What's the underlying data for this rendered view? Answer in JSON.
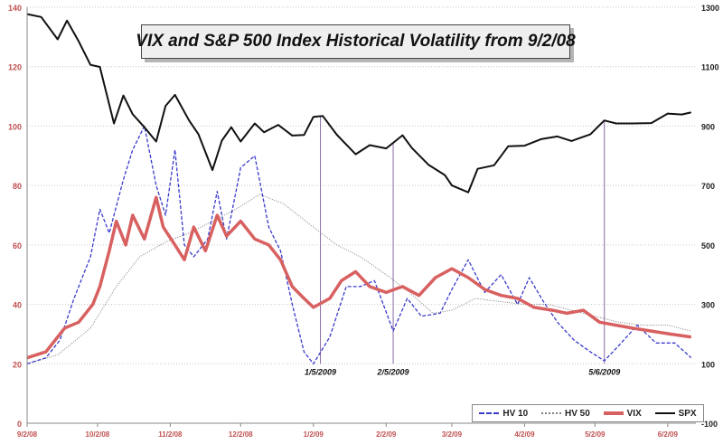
{
  "chart_data": {
    "type": "line",
    "title": "VIX and S&P 500 Index Historical Volatility from 9/2/08",
    "x_dates": [
      "9/2/08",
      "10/2/08",
      "11/2/08",
      "12/2/08",
      "1/2/09",
      "2/2/09",
      "3/2/09",
      "4/2/09",
      "5/2/09",
      "6/2/09"
    ],
    "left_axis": {
      "ylim": [
        0,
        140
      ],
      "ticks": [
        0,
        20,
        40,
        60,
        80,
        100,
        120,
        140
      ]
    },
    "right_axis": {
      "ylim": [
        -100,
        1300
      ],
      "ticks": [
        -100,
        100,
        300,
        500,
        700,
        900,
        1100,
        1300
      ]
    },
    "grid": true,
    "legend_position": "bottom-right",
    "series": [
      {
        "name": "HV 10",
        "axis": "left",
        "color": "#3a3acc",
        "style": "dashed",
        "points": [
          [
            "9/2/08",
            20
          ],
          [
            "9/10/08",
            22
          ],
          [
            "9/16/08",
            28
          ],
          [
            "9/22/08",
            42
          ],
          [
            "9/29/08",
            56
          ],
          [
            "10/3/08",
            72
          ],
          [
            "10/7/08",
            64
          ],
          [
            "10/13/08",
            82
          ],
          [
            "10/17/08",
            92
          ],
          [
            "10/22/08",
            100
          ],
          [
            "10/27/08",
            80
          ],
          [
            "10/31/08",
            70
          ],
          [
            "11/4/08",
            92
          ],
          [
            "11/8/08",
            60
          ],
          [
            "11/12/08",
            56
          ],
          [
            "11/18/08",
            62
          ],
          [
            "11/22/08",
            78
          ],
          [
            "11/26/08",
            62
          ],
          [
            "12/2/08",
            86
          ],
          [
            "12/8/08",
            90
          ],
          [
            "12/14/08",
            66
          ],
          [
            "12/19/08",
            58
          ],
          [
            "12/24/08",
            40
          ],
          [
            "12/29/08",
            24
          ],
          [
            "1/2/09",
            20
          ],
          [
            "1/9/09",
            29
          ],
          [
            "1/16/09",
            46
          ],
          [
            "1/22/09",
            46
          ],
          [
            "1/28/09",
            48
          ],
          [
            "2/5/09",
            31
          ],
          [
            "2/11/09",
            42
          ],
          [
            "2/17/09",
            36
          ],
          [
            "2/25/09",
            37
          ],
          [
            "3/2/09",
            45
          ],
          [
            "3/9/09",
            55
          ],
          [
            "3/16/09",
            44
          ],
          [
            "3/23/09",
            50
          ],
          [
            "3/30/09",
            40
          ],
          [
            "4/4/09",
            49
          ],
          [
            "4/10/09",
            41
          ],
          [
            "4/16/09",
            34
          ],
          [
            "4/23/09",
            28
          ],
          [
            "4/30/09",
            24
          ],
          [
            "5/6/09",
            21
          ],
          [
            "5/12/09",
            26
          ],
          [
            "5/20/09",
            33
          ],
          [
            "5/28/09",
            27
          ],
          [
            "6/5/09",
            27
          ],
          [
            "6/12/09",
            22
          ]
        ]
      },
      {
        "name": "HV 50",
        "axis": "left",
        "color": "#808080",
        "style": "dotted",
        "points": [
          [
            "9/2/08",
            20
          ],
          [
            "9/15/08",
            23
          ],
          [
            "9/29/08",
            32
          ],
          [
            "10/10/08",
            46
          ],
          [
            "10/20/08",
            56
          ],
          [
            "10/31/08",
            61
          ],
          [
            "11/10/08",
            64
          ],
          [
            "11/20/08",
            68
          ],
          [
            "11/30/08",
            72
          ],
          [
            "12/10/08",
            77
          ],
          [
            "12/20/08",
            74
          ],
          [
            "1/2/09",
            66
          ],
          [
            "1/12/09",
            60
          ],
          [
            "1/22/09",
            56
          ],
          [
            "2/2/09",
            50
          ],
          [
            "2/12/09",
            44
          ],
          [
            "2/22/09",
            37
          ],
          [
            "3/2/09",
            38
          ],
          [
            "3/12/09",
            42
          ],
          [
            "3/22/09",
            41
          ],
          [
            "4/2/09",
            40
          ],
          [
            "4/12/09",
            40
          ],
          [
            "4/22/09",
            38
          ],
          [
            "5/2/09",
            36
          ],
          [
            "5/12/09",
            34
          ],
          [
            "5/22/09",
            33
          ],
          [
            "6/2/09",
            33
          ],
          [
            "6/12/09",
            31
          ]
        ]
      },
      {
        "name": "VIX",
        "axis": "left",
        "color": "#d86060",
        "style": "solid-thick",
        "points": [
          [
            "9/2/08",
            22
          ],
          [
            "9/10/08",
            24
          ],
          [
            "9/18/08",
            32
          ],
          [
            "9/24/08",
            34
          ],
          [
            "9/30/08",
            40
          ],
          [
            "10/3/08",
            46
          ],
          [
            "10/7/08",
            58
          ],
          [
            "10/10/08",
            68
          ],
          [
            "10/14/08",
            60
          ],
          [
            "10/17/08",
            70
          ],
          [
            "10/22/08",
            62
          ],
          [
            "10/27/08",
            76
          ],
          [
            "10/30/08",
            66
          ],
          [
            "11/4/08",
            60
          ],
          [
            "11/8/08",
            55
          ],
          [
            "11/12/08",
            66
          ],
          [
            "11/17/08",
            58
          ],
          [
            "11/22/08",
            70
          ],
          [
            "11/26/08",
            63
          ],
          [
            "12/2/08",
            68
          ],
          [
            "12/8/08",
            62
          ],
          [
            "12/14/08",
            60
          ],
          [
            "12/19/08",
            55
          ],
          [
            "12/24/08",
            46
          ],
          [
            "12/29/08",
            42
          ],
          [
            "1/2/09",
            39
          ],
          [
            "1/9/09",
            42
          ],
          [
            "1/14/09",
            48
          ],
          [
            "1/20/09",
            51
          ],
          [
            "1/26/09",
            46
          ],
          [
            "2/2/09",
            44
          ],
          [
            "2/9/09",
            46
          ],
          [
            "2/16/09",
            43
          ],
          [
            "2/23/09",
            49
          ],
          [
            "3/2/09",
            52
          ],
          [
            "3/9/09",
            49
          ],
          [
            "3/16/09",
            45
          ],
          [
            "3/23/09",
            43
          ],
          [
            "3/30/09",
            42
          ],
          [
            "4/6/09",
            39
          ],
          [
            "4/14/09",
            38
          ],
          [
            "4/20/09",
            37
          ],
          [
            "4/27/09",
            38
          ],
          [
            "5/4/09",
            34
          ],
          [
            "5/11/09",
            33
          ],
          [
            "5/18/09",
            32
          ],
          [
            "5/26/09",
            31
          ],
          [
            "6/3/09",
            30
          ],
          [
            "6/12/09",
            29
          ]
        ]
      },
      {
        "name": "SPX",
        "axis": "right",
        "color": "#111111",
        "style": "solid",
        "points": [
          [
            "9/2/08",
            1277
          ],
          [
            "9/8/08",
            1267
          ],
          [
            "9/15/08",
            1192
          ],
          [
            "9/19/08",
            1255
          ],
          [
            "9/24/08",
            1185
          ],
          [
            "9/29/08",
            1106
          ],
          [
            "10/3/08",
            1099
          ],
          [
            "10/9/08",
            909
          ],
          [
            "10/13/08",
            1003
          ],
          [
            "10/17/08",
            940
          ],
          [
            "10/22/08",
            896
          ],
          [
            "10/27/08",
            848
          ],
          [
            "10/31/08",
            968
          ],
          [
            "11/4/08",
            1005
          ],
          [
            "11/10/08",
            919
          ],
          [
            "11/14/08",
            873
          ],
          [
            "11/20/08",
            752
          ],
          [
            "11/24/08",
            851
          ],
          [
            "11/28/08",
            896
          ],
          [
            "12/2/08",
            848
          ],
          [
            "12/8/08",
            909
          ],
          [
            "12/12/08",
            879
          ],
          [
            "12/18/08",
            904
          ],
          [
            "12/24/08",
            868
          ],
          [
            "12/29/08",
            870
          ],
          [
            "1/2/09",
            931
          ],
          [
            "1/6/09",
            934
          ],
          [
            "1/12/09",
            871
          ],
          [
            "1/20/09",
            805
          ],
          [
            "1/26/09",
            836
          ],
          [
            "2/2/09",
            825
          ],
          [
            "2/9/09",
            869
          ],
          [
            "2/13/09",
            826
          ],
          [
            "2/20/09",
            770
          ],
          [
            "2/27/09",
            735
          ],
          [
            "3/2/09",
            700
          ],
          [
            "3/9/09",
            677
          ],
          [
            "3/13/09",
            756
          ],
          [
            "3/20/09",
            768
          ],
          [
            "3/26/09",
            832
          ],
          [
            "4/2/09",
            834
          ],
          [
            "4/9/09",
            856
          ],
          [
            "4/16/09",
            865
          ],
          [
            "4/22/09",
            850
          ],
          [
            "4/30/09",
            872
          ],
          [
            "5/6/09",
            919
          ],
          [
            "5/11/09",
            909
          ],
          [
            "5/18/09",
            909
          ],
          [
            "5/26/09",
            910
          ],
          [
            "6/2/09",
            942
          ],
          [
            "6/8/09",
            939
          ],
          [
            "6/12/09",
            946
          ]
        ]
      }
    ],
    "annotations": [
      {
        "label": "1/5/2009",
        "date": "1/5/09"
      },
      {
        "label": "2/5/2009",
        "date": "2/5/09"
      },
      {
        "label": "5/6/2009",
        "date": "5/6/09"
      }
    ]
  }
}
